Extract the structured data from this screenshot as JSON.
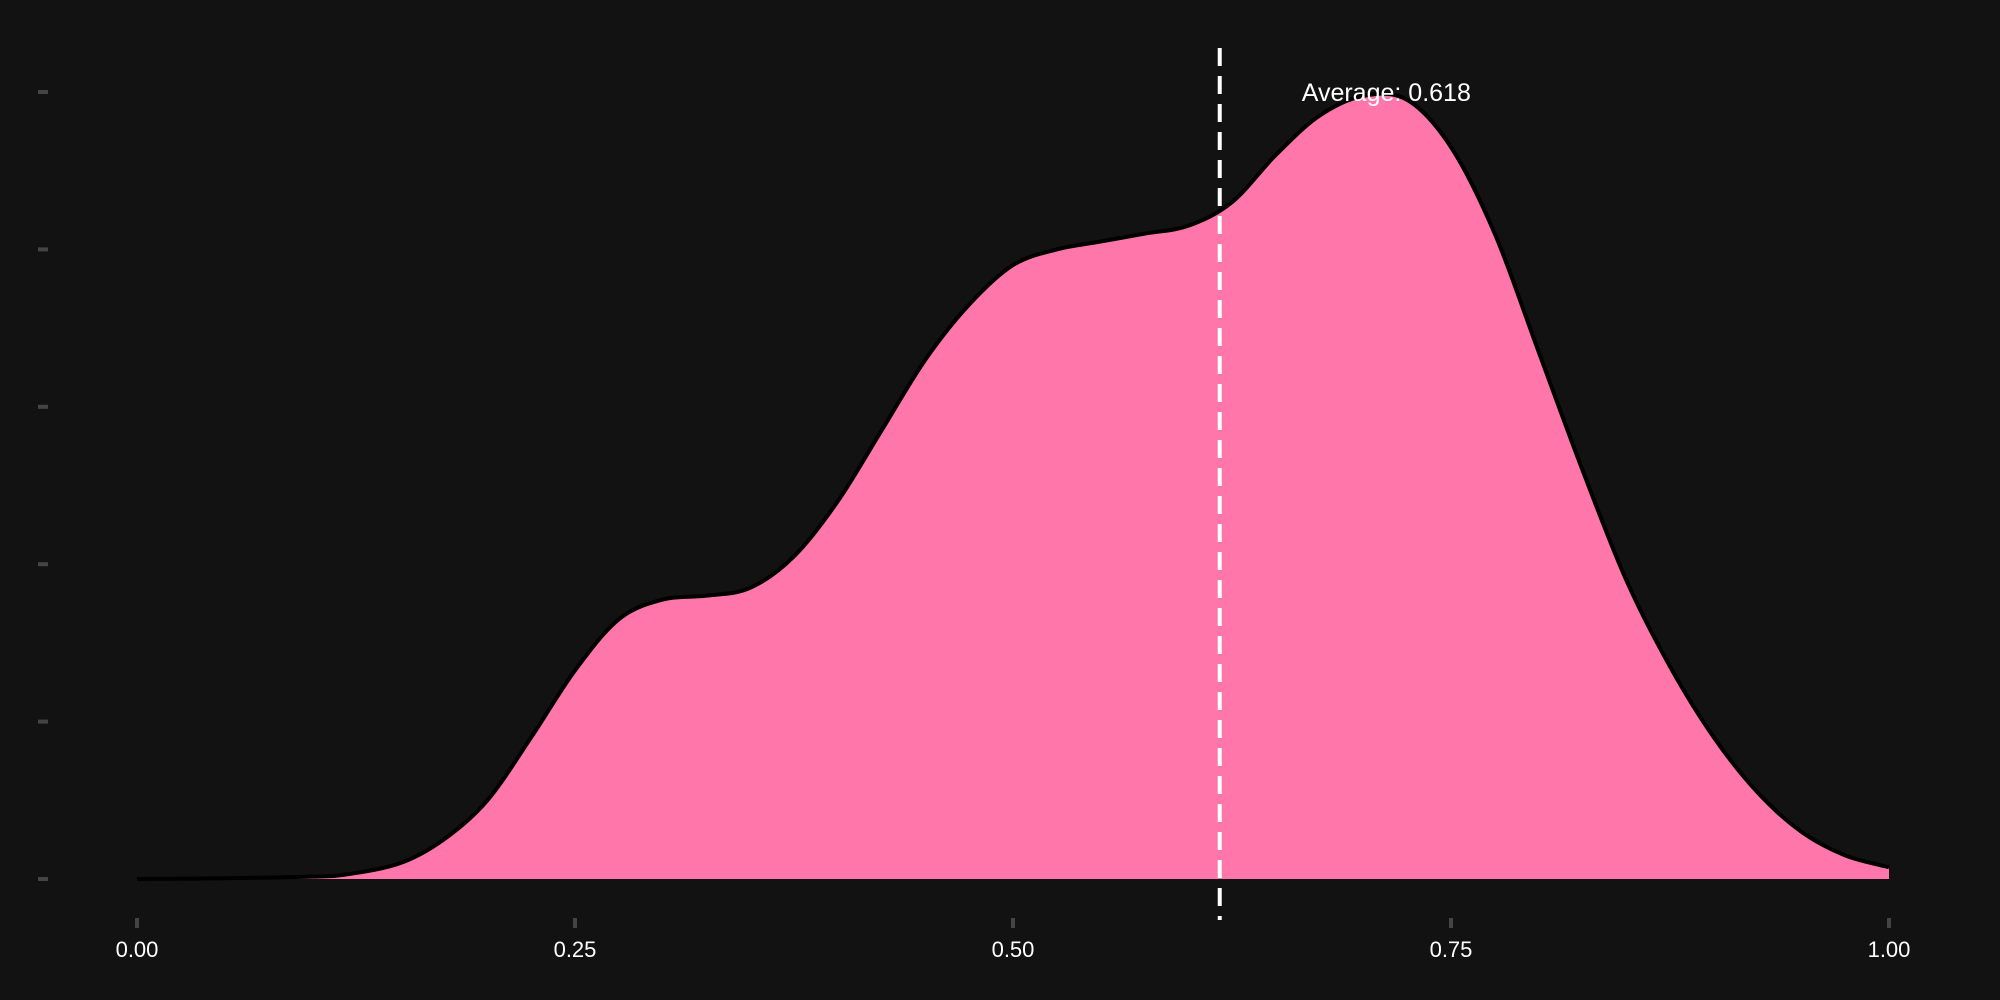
{
  "chart_data": {
    "type": "area",
    "title": "",
    "xlabel": "",
    "ylabel": "",
    "xlim": [
      0,
      1
    ],
    "ylim": [
      0,
      1
    ],
    "grid": false,
    "fill_color": "#ff77aa",
    "line_color": "#000000",
    "background_color": "#121212",
    "x_ticks": [
      {
        "value": 0.0,
        "label": "0.00"
      },
      {
        "value": 0.25,
        "label": "0.25"
      },
      {
        "value": 0.5,
        "label": "0.50"
      },
      {
        "value": 0.75,
        "label": "0.75"
      },
      {
        "value": 1.0,
        "label": "1.00"
      }
    ],
    "y_ticks": [
      0.0,
      0.2,
      0.4,
      0.6,
      0.8,
      1.0
    ],
    "series": [
      {
        "x": [
          0.0,
          0.05,
          0.1,
          0.12,
          0.15,
          0.175,
          0.2,
          0.225,
          0.25,
          0.275,
          0.3,
          0.325,
          0.35,
          0.375,
          0.4,
          0.425,
          0.45,
          0.475,
          0.5,
          0.525,
          0.55,
          0.575,
          0.6,
          0.625,
          0.65,
          0.675,
          0.7,
          0.725,
          0.75,
          0.775,
          0.8,
          0.825,
          0.85,
          0.875,
          0.9,
          0.925,
          0.95,
          0.975,
          1.0
        ],
        "y": [
          0.0,
          0.001,
          0.003,
          0.006,
          0.02,
          0.05,
          0.1,
          0.18,
          0.265,
          0.33,
          0.355,
          0.36,
          0.37,
          0.41,
          0.48,
          0.57,
          0.66,
          0.73,
          0.78,
          0.8,
          0.81,
          0.82,
          0.83,
          0.86,
          0.92,
          0.97,
          0.995,
          0.99,
          0.93,
          0.82,
          0.67,
          0.52,
          0.38,
          0.27,
          0.18,
          0.11,
          0.06,
          0.03,
          0.015
        ]
      }
    ],
    "annotations": [
      {
        "type": "vline",
        "x": 0.618,
        "style": "dashed",
        "color": "#ffffff",
        "label": "Average: 0.618"
      }
    ]
  }
}
